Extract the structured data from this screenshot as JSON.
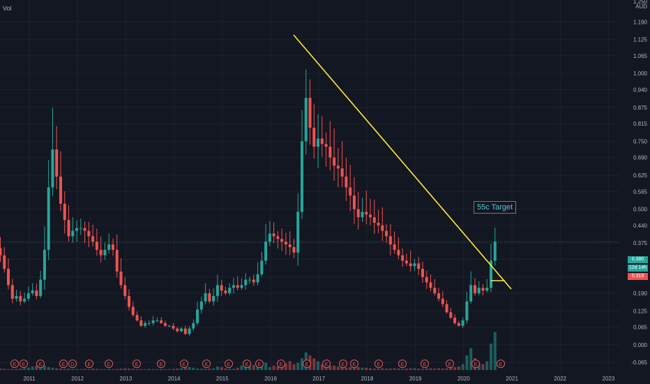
{
  "vol_label": "Vol",
  "currency": "AUD",
  "annotation": "55c Target",
  "price_tags": {
    "current": "0.380",
    "countdown": "12d 14h",
    "other": "0.319"
  },
  "colors": {
    "up": "#26a69a",
    "down": "#ef5350",
    "trend": "#ffeb3b",
    "bg": "#131722",
    "grid": "#1e222d"
  },
  "chart_data": {
    "type": "candlestick",
    "x_unit": "year",
    "xlim": [
      2010.4,
      2023.7
    ],
    "ylim": [
      -0.08,
      1.25
    ],
    "y_ticks": [
      "1.190",
      "1.125",
      "1.065",
      "1.000",
      "0.940",
      "0.875",
      "0.815",
      "0.750",
      "0.690",
      "0.625",
      "0.565",
      "0.500",
      "0.440",
      "0.375",
      "0.315",
      "0.250",
      "0.190",
      "0.125",
      "0.065",
      "0.000",
      "-0.065"
    ],
    "x_ticks": [
      "2011",
      "2012",
      "2013",
      "2014",
      "2015",
      "2016",
      "2017",
      "2018",
      "2019",
      "2020",
      "2021",
      "2022",
      "2023"
    ],
    "top_tick": "1.250",
    "close": [
      0.33,
      0.28,
      0.22,
      0.17,
      0.18,
      0.16,
      0.17,
      0.19,
      0.2,
      0.18,
      0.24,
      0.35,
      0.58,
      0.72,
      0.62,
      0.52,
      0.46,
      0.4,
      0.42,
      0.43,
      0.43,
      0.42,
      0.4,
      0.38,
      0.35,
      0.33,
      0.35,
      0.37,
      0.35,
      0.27,
      0.22,
      0.18,
      0.14,
      0.11,
      0.09,
      0.07,
      0.08,
      0.08,
      0.09,
      0.09,
      0.08,
      0.07,
      0.07,
      0.06,
      0.05,
      0.06,
      0.04,
      0.06,
      0.08,
      0.13,
      0.16,
      0.19,
      0.16,
      0.18,
      0.22,
      0.2,
      0.19,
      0.21,
      0.22,
      0.21,
      0.22,
      0.24,
      0.24,
      0.23,
      0.26,
      0.31,
      0.38,
      0.41,
      0.4,
      0.39,
      0.38,
      0.37,
      0.36,
      0.34,
      0.49,
      0.75,
      0.91,
      0.8,
      0.73,
      0.76,
      0.74,
      0.73,
      0.69,
      0.66,
      0.65,
      0.62,
      0.58,
      0.55,
      0.5,
      0.47,
      0.49,
      0.48,
      0.47,
      0.45,
      0.44,
      0.42,
      0.4,
      0.37,
      0.35,
      0.33,
      0.31,
      0.3,
      0.29,
      0.3,
      0.28,
      0.25,
      0.23,
      0.21,
      0.19,
      0.17,
      0.15,
      0.12,
      0.1,
      0.08,
      0.07,
      0.09,
      0.16,
      0.22,
      0.19,
      0.21,
      0.2,
      0.21,
      0.31,
      0.38
    ],
    "volume": [
      0.5,
      0.4,
      0.3,
      0.3,
      0.4,
      0.5,
      0.6,
      0.8,
      1.2,
      1.5,
      2.0,
      1.5,
      1.0,
      0.8,
      0.6,
      0.5,
      0.4,
      0.5,
      0.4,
      0.3,
      0.3,
      0.4,
      0.3,
      0.5,
      0.4,
      0.3,
      0.3,
      0.4,
      0.3,
      0.4,
      0.5,
      0.6,
      0.5,
      0.4,
      0.3,
      0.3,
      0.3,
      0.4,
      0.3,
      0.3,
      0.4,
      0.3,
      0.3,
      0.4,
      0.5,
      0.6,
      2.0,
      1.0,
      0.8,
      0.5,
      0.4,
      0.4,
      0.5,
      0.6,
      1.2,
      1.0,
      0.6,
      0.5,
      0.4,
      0.8,
      1.5,
      1.0,
      2.0,
      1.8,
      1.2,
      1.5,
      2.5,
      1.0,
      1.5,
      1.2,
      1.8,
      2.2,
      3.0,
      2.0,
      2.5,
      4.0,
      6.0,
      5.0,
      4.0,
      3.0,
      2.0,
      2.0,
      1.5,
      1.5,
      1.2,
      1.0,
      0.8,
      1.0,
      1.2,
      1.0,
      0.8,
      0.8,
      0.6,
      0.5,
      0.5,
      0.6,
      0.5,
      0.5,
      0.6,
      0.5,
      0.4,
      0.5,
      0.6,
      0.6,
      0.5,
      0.4,
      0.5,
      0.6,
      0.5,
      0.6,
      0.5,
      0.6,
      0.8,
      1.0,
      1.2,
      2.0,
      5.0,
      7.5,
      4.0,
      2.5,
      2.0,
      3.0,
      9.0,
      13.0
    ]
  }
}
